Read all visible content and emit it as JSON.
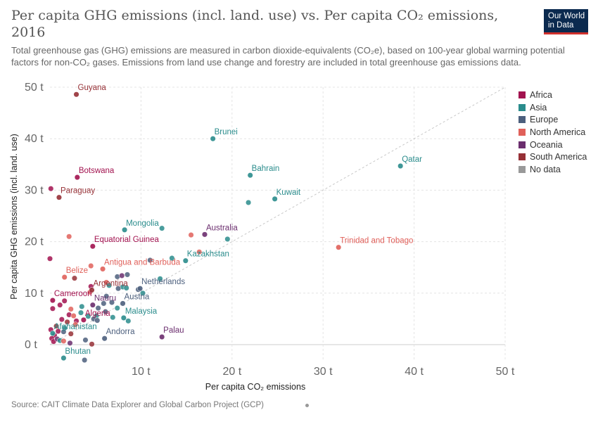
{
  "header": {
    "title": "Per capita GHG emissions (incl. land. use) vs. Per capita CO₂ emissions, 2016",
    "subtitle": "Total greenhouse gas (GHG) emissions are measured in carbon dioxide-equivalents (CO₂e), based on 100-year global warming potential factors for non-CO₂ gases. Emissions from land use change and forestry are included in total greenhouse gas emissions data.",
    "logo_line1": "Our World",
    "logo_line2": "in Data"
  },
  "footer": {
    "source": "Source: CAIT Climate Data Explorer and Global Carbon Project (GCP)"
  },
  "colors": {
    "Africa": "#a2124f",
    "Asia": "#2a8c8c",
    "Europe": "#4c5f7d",
    "North America": "#e0605a",
    "Oceania": "#6b2e6e",
    "South America": "#963036",
    "No data": "#999999"
  },
  "legend": [
    {
      "label": "Africa",
      "color": "#a2124f"
    },
    {
      "label": "Asia",
      "color": "#2a8c8c"
    },
    {
      "label": "Europe",
      "color": "#4c5f7d"
    },
    {
      "label": "North America",
      "color": "#e0605a"
    },
    {
      "label": "Oceania",
      "color": "#6b2e6e"
    },
    {
      "label": "South America",
      "color": "#963036"
    },
    {
      "label": "No data",
      "color": "#999999"
    }
  ],
  "chart_data": {
    "type": "scatter",
    "title": "Per capita GHG emissions (incl. land. use) vs. Per capita CO₂ emissions, 2016",
    "xlabel": "Per capita CO₂ emissions",
    "ylabel": "Per capita GHG emissions (incl. land. use)",
    "xlim": [
      0,
      50
    ],
    "ylim": [
      0,
      50
    ],
    "x_ticks": [
      {
        "v": 10,
        "label": "10 t"
      },
      {
        "v": 20,
        "label": "20 t"
      },
      {
        "v": 30,
        "label": "30 t"
      },
      {
        "v": 40,
        "label": "40 t"
      },
      {
        "v": 50,
        "label": "50 t"
      }
    ],
    "y_ticks": [
      {
        "v": 0,
        "label": "0 t"
      },
      {
        "v": 10,
        "label": "10 t"
      },
      {
        "v": 20,
        "label": "20 t"
      },
      {
        "v": 30,
        "label": "30 t"
      },
      {
        "v": 40,
        "label": "40 t"
      },
      {
        "v": 50,
        "label": "50 t"
      }
    ],
    "grid": true,
    "diagonal_reference_line": true,
    "legend_position": "right",
    "labeled_points": [
      {
        "name": "Guyana",
        "region": "South America",
        "x": 2.9,
        "y": 48.6
      },
      {
        "name": "Brunei",
        "region": "Asia",
        "x": 17.9,
        "y": 40.0
      },
      {
        "name": "Qatar",
        "region": "Asia",
        "x": 38.5,
        "y": 34.7
      },
      {
        "name": "Bahrain",
        "region": "Asia",
        "x": 22.0,
        "y": 32.9
      },
      {
        "name": "Botswana",
        "region": "Africa",
        "x": 3.0,
        "y": 32.5
      },
      {
        "name": "Paraguay",
        "region": "South America",
        "x": 1.0,
        "y": 28.6
      },
      {
        "name": "Kuwait",
        "region": "Asia",
        "x": 24.7,
        "y": 28.3
      },
      {
        "name": "Mongolia",
        "region": "Asia",
        "x": 8.2,
        "y": 22.3
      },
      {
        "name": "Australia",
        "region": "Oceania",
        "x": 17.0,
        "y": 21.4
      },
      {
        "name": "Equatorial Guinea",
        "region": "Africa",
        "x": 4.7,
        "y": 19.1
      },
      {
        "name": "Trinidad and Tobago",
        "region": "North America",
        "x": 31.7,
        "y": 18.9
      },
      {
        "name": "Kazakhstan",
        "region": "Asia",
        "x": 14.9,
        "y": 16.3
      },
      {
        "name": "Antigua and Barbuda",
        "region": "North America",
        "x": 5.8,
        "y": 14.7
      },
      {
        "name": "Belize",
        "region": "North America",
        "x": 1.6,
        "y": 13.1
      },
      {
        "name": "Argentina",
        "region": "South America",
        "x": 4.6,
        "y": 10.6
      },
      {
        "name": "Netherlands",
        "region": "Europe",
        "x": 9.9,
        "y": 10.9
      },
      {
        "name": "Cameroon",
        "region": "Africa",
        "x": 0.3,
        "y": 8.6
      },
      {
        "name": "Nauru",
        "region": "Oceania",
        "x": 4.7,
        "y": 7.7
      },
      {
        "name": "Austria",
        "region": "Europe",
        "x": 8.0,
        "y": 8.0
      },
      {
        "name": "Malaysia",
        "region": "Asia",
        "x": 8.1,
        "y": 5.2
      },
      {
        "name": "Algeria",
        "region": "Africa",
        "x": 3.7,
        "y": 4.8
      },
      {
        "name": "Afghanistan",
        "region": "Asia",
        "x": 0.3,
        "y": 2.2
      },
      {
        "name": "Palau",
        "region": "Oceania",
        "x": 12.3,
        "y": 1.5
      },
      {
        "name": "Andorra",
        "region": "Europe",
        "x": 6.0,
        "y": 1.2
      },
      {
        "name": "Bhutan",
        "region": "Asia",
        "x": 1.5,
        "y": -2.6
      }
    ],
    "other_points": [
      {
        "region": "Asia",
        "x": 21.8,
        "y": 27.6
      },
      {
        "region": "Asia",
        "x": 12.3,
        "y": 22.6
      },
      {
        "region": "Asia",
        "x": 19.5,
        "y": 20.5
      },
      {
        "region": "North America",
        "x": 15.5,
        "y": 21.3
      },
      {
        "region": "North America",
        "x": 2.1,
        "y": 21.0
      },
      {
        "region": "North America",
        "x": 16.4,
        "y": 18.0
      },
      {
        "region": "Africa",
        "x": 0.1,
        "y": 30.3
      },
      {
        "region": "Africa",
        "x": 0.0,
        "y": 16.7
      },
      {
        "region": "Asia",
        "x": 13.4,
        "y": 16.8
      },
      {
        "region": "Europe",
        "x": 11.0,
        "y": 16.4
      },
      {
        "region": "North America",
        "x": 4.5,
        "y": 15.3
      },
      {
        "region": "Asia",
        "x": 12.1,
        "y": 12.8
      },
      {
        "region": "South America",
        "x": 2.7,
        "y": 12.9
      },
      {
        "region": "Europe",
        "x": 8.5,
        "y": 13.6
      },
      {
        "region": "Europe",
        "x": 7.4,
        "y": 13.2
      },
      {
        "region": "Oceania",
        "x": 7.9,
        "y": 13.4
      },
      {
        "region": "North America",
        "x": 6.2,
        "y": 12.1
      },
      {
        "region": "Asia",
        "x": 8.0,
        "y": 11.2
      },
      {
        "region": "Asia",
        "x": 8.4,
        "y": 11.0
      },
      {
        "region": "Europe",
        "x": 9.7,
        "y": 10.7
      },
      {
        "region": "Asia",
        "x": 10.2,
        "y": 10.0
      },
      {
        "region": "Asia",
        "x": 6.5,
        "y": 11.5
      },
      {
        "region": "Africa",
        "x": 4.5,
        "y": 11.3
      },
      {
        "region": "Europe",
        "x": 7.5,
        "y": 10.9
      },
      {
        "region": "North America",
        "x": 4.4,
        "y": 10.2
      },
      {
        "region": "Europe",
        "x": 6.2,
        "y": 9.4
      },
      {
        "region": "Europe",
        "x": 6.8,
        "y": 8.2
      },
      {
        "region": "Europe",
        "x": 5.9,
        "y": 8.0
      },
      {
        "region": "Europe",
        "x": 5.3,
        "y": 7.1
      },
      {
        "region": "Europe",
        "x": 6.1,
        "y": 6.4
      },
      {
        "region": "Asia",
        "x": 3.5,
        "y": 7.4
      },
      {
        "region": "Asia",
        "x": 7.4,
        "y": 7.1
      },
      {
        "region": "North America",
        "x": 2.3,
        "y": 6.9
      },
      {
        "region": "Africa",
        "x": 1.1,
        "y": 7.7
      },
      {
        "region": "Africa",
        "x": 1.6,
        "y": 8.5
      },
      {
        "region": "Africa",
        "x": 0.3,
        "y": 7.0
      },
      {
        "region": "Africa",
        "x": 2.1,
        "y": 5.8
      },
      {
        "region": "North America",
        "x": 2.6,
        "y": 5.6
      },
      {
        "region": "Asia",
        "x": 3.4,
        "y": 6.2
      },
      {
        "region": "Asia",
        "x": 4.2,
        "y": 5.5
      },
      {
        "region": "Asia",
        "x": 5.1,
        "y": 5.6
      },
      {
        "region": "Europe",
        "x": 4.8,
        "y": 5.0
      },
      {
        "region": "Asia",
        "x": 6.9,
        "y": 5.3
      },
      {
        "region": "Asia",
        "x": 8.6,
        "y": 4.6
      },
      {
        "region": "Europe",
        "x": 5.2,
        "y": 4.7
      },
      {
        "region": "Africa",
        "x": 2.9,
        "y": 4.6
      },
      {
        "region": "South America",
        "x": 1.9,
        "y": 4.4
      },
      {
        "region": "North America",
        "x": 2.8,
        "y": 3.9
      },
      {
        "region": "Asia",
        "x": 1.6,
        "y": 3.2
      },
      {
        "region": "Europe",
        "x": 1.5,
        "y": 2.5
      },
      {
        "region": "South America",
        "x": 2.3,
        "y": 2.1
      },
      {
        "region": "Africa",
        "x": 0.9,
        "y": 2.6
      },
      {
        "region": "Africa",
        "x": 0.5,
        "y": 1.8
      },
      {
        "region": "Africa",
        "x": 0.2,
        "y": 1.2
      },
      {
        "region": "Africa",
        "x": 0.4,
        "y": 0.6
      },
      {
        "region": "Oceania",
        "x": 0.8,
        "y": 1.1
      },
      {
        "region": "Asia",
        "x": 1.1,
        "y": 0.8
      },
      {
        "region": "Africa",
        "x": 0.1,
        "y": 2.9
      },
      {
        "region": "North America",
        "x": 1.5,
        "y": 0.7
      },
      {
        "region": "Oceania",
        "x": 2.2,
        "y": 0.3
      },
      {
        "region": "Europe",
        "x": 3.9,
        "y": 0.9
      },
      {
        "region": "South America",
        "x": 4.6,
        "y": 0.1
      },
      {
        "region": "Europe",
        "x": 3.8,
        "y": -3.0
      },
      {
        "region": "South America",
        "x": 0.7,
        "y": 3.6
      },
      {
        "region": "Africa",
        "x": 1.3,
        "y": 4.9
      }
    ]
  }
}
